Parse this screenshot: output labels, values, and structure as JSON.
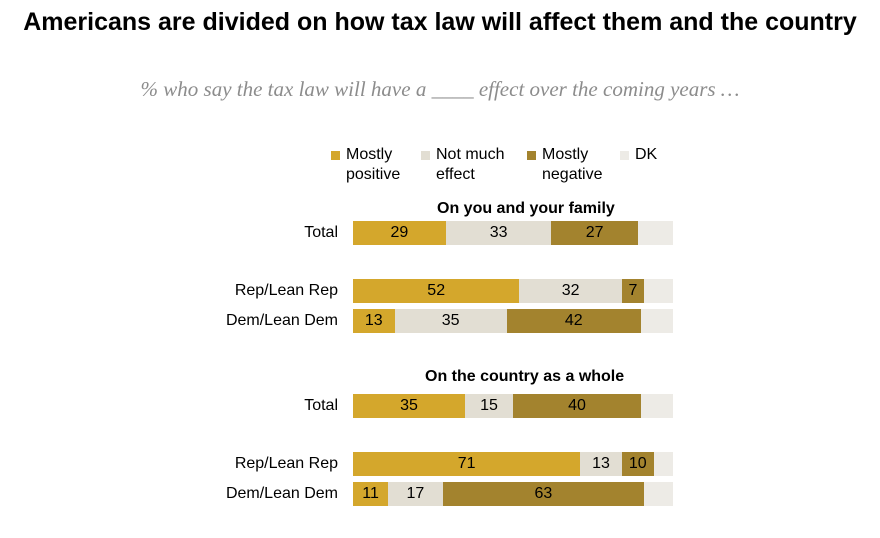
{
  "title": "Americans are divided on how tax law will affect them and the country",
  "subtitle": "% who say the tax law will have a ____ effect over the coming years …",
  "chart_data": {
    "type": "bar",
    "orientation": "horizontal-stacked",
    "legend": [
      {
        "name": "Mostly positive",
        "color": "#d4a72c"
      },
      {
        "name": "Not much effect",
        "color": "#e2ded3"
      },
      {
        "name": "Mostly negative",
        "color": "#a3832e"
      },
      {
        "name": "DK",
        "color": "#edebe6"
      }
    ],
    "sections": [
      {
        "title": "On you and your family",
        "rows": [
          {
            "label": "Total",
            "values": [
              29,
              33,
              27,
              11
            ]
          },
          {
            "label": "Rep/Lean Rep",
            "values": [
              52,
              32,
              7,
              9
            ]
          },
          {
            "label": "Dem/Lean Dem",
            "values": [
              13,
              35,
              42,
              10
            ]
          }
        ]
      },
      {
        "title": "On the country as a whole",
        "rows": [
          {
            "label": "Total",
            "values": [
              35,
              15,
              40,
              10
            ]
          },
          {
            "label": "Rep/Lean Rep",
            "values": [
              71,
              13,
              10,
              6
            ]
          },
          {
            "label": "Dem/Lean Dem",
            "values": [
              11,
              17,
              63,
              9
            ]
          }
        ]
      }
    ],
    "xlim": [
      0,
      100
    ]
  }
}
